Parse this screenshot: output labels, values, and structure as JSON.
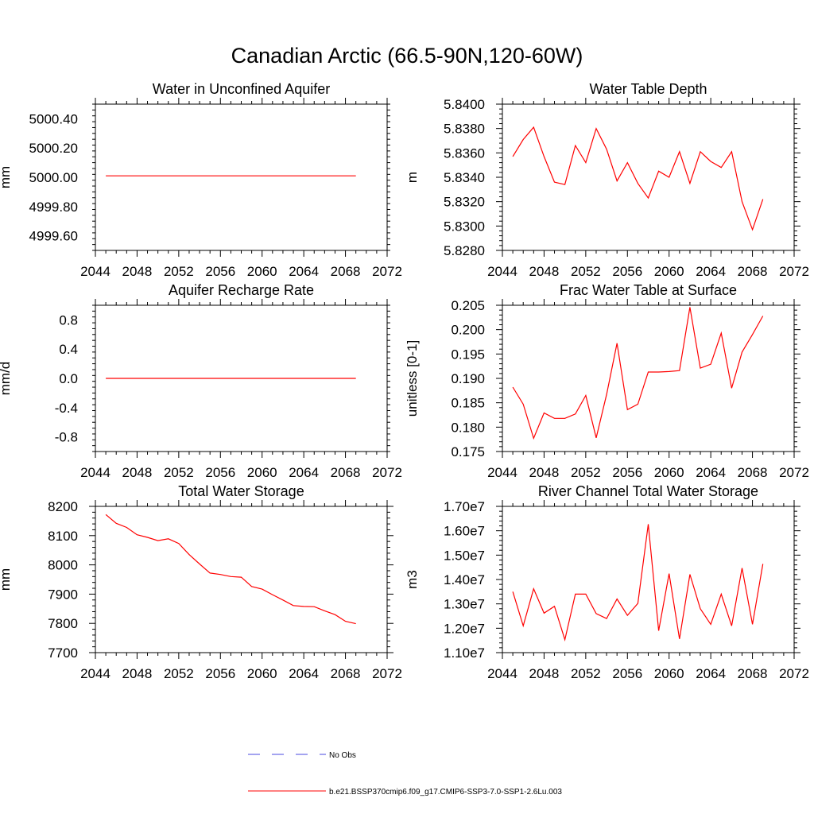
{
  "page_title": "Canadian Arctic (66.5-90N,120-60W)",
  "colors": {
    "series": "#ff0000",
    "obs": "#4a4ae0",
    "axis": "#000000"
  },
  "legend": {
    "items": [
      {
        "label": "No Obs",
        "style": "dashed",
        "color": "#4a4ae0"
      },
      {
        "label": "b.e21.BSSP370cmip6.f09_g17.CMIP6-SSP3-7.0-SSP1-2.6Lu.003",
        "style": "solid",
        "color": "#ff0000"
      }
    ]
  },
  "chart_data": [
    {
      "type": "line",
      "title": "Water in Unconfined Aquifer",
      "ylabel": "mm",
      "xlim": [
        2044,
        2072
      ],
      "ylim": [
        4999.5,
        5000.5
      ],
      "xticks": [
        2044,
        2048,
        2052,
        2056,
        2060,
        2064,
        2068,
        2072
      ],
      "yticks": [
        4999.6,
        4999.8,
        5000.0,
        5000.2,
        5000.4
      ],
      "ytick_labels": [
        "4999.60",
        "4999.80",
        "5000.00",
        "5000.20",
        "5000.40"
      ],
      "x": [
        2045,
        2046,
        2047,
        2048,
        2049,
        2050,
        2051,
        2052,
        2053,
        2054,
        2055,
        2056,
        2057,
        2058,
        2059,
        2060,
        2061,
        2062,
        2063,
        2064,
        2065,
        2066,
        2067,
        2068,
        2069
      ],
      "y": [
        5000.01,
        5000.01,
        5000.01,
        5000.01,
        5000.01,
        5000.01,
        5000.01,
        5000.01,
        5000.01,
        5000.01,
        5000.01,
        5000.01,
        5000.01,
        5000.01,
        5000.01,
        5000.01,
        5000.01,
        5000.01,
        5000.01,
        5000.01,
        5000.01,
        5000.01,
        5000.01,
        5000.01,
        5000.01
      ]
    },
    {
      "type": "line",
      "title": "Water Table Depth",
      "ylabel": "m",
      "xlim": [
        2044,
        2072
      ],
      "ylim": [
        5.828,
        5.84
      ],
      "xticks": [
        2044,
        2048,
        2052,
        2056,
        2060,
        2064,
        2068,
        2072
      ],
      "yticks": [
        5.828,
        5.83,
        5.832,
        5.834,
        5.836,
        5.838,
        5.84
      ],
      "ytick_labels": [
        "5.8280",
        "5.8300",
        "5.8320",
        "5.8340",
        "5.8360",
        "5.8380",
        "5.8400"
      ],
      "x": [
        2045,
        2046,
        2047,
        2048,
        2049,
        2050,
        2051,
        2052,
        2053,
        2054,
        2055,
        2056,
        2057,
        2058,
        2059,
        2060,
        2061,
        2062,
        2063,
        2064,
        2065,
        2066,
        2067,
        2068,
        2069
      ],
      "y": [
        5.8357,
        5.8371,
        5.8381,
        5.8357,
        5.8336,
        5.8334,
        5.8366,
        5.8352,
        5.838,
        5.8363,
        5.8337,
        5.8352,
        5.8335,
        5.8323,
        5.8345,
        5.834,
        5.8361,
        5.8335,
        5.8361,
        5.8353,
        5.8348,
        5.8361,
        5.832,
        5.8297,
        5.8322
      ]
    },
    {
      "type": "line",
      "title": "Aquifer Recharge Rate",
      "ylabel": "mm/d",
      "xlim": [
        2044,
        2072
      ],
      "ylim": [
        -1.0,
        1.0
      ],
      "xticks": [
        2044,
        2048,
        2052,
        2056,
        2060,
        2064,
        2068,
        2072
      ],
      "yticks": [
        -0.8,
        -0.4,
        0.0,
        0.4,
        0.8
      ],
      "ytick_labels": [
        "-0.8",
        "-0.4",
        "0.0",
        "0.4",
        "0.8"
      ],
      "x": [
        2045,
        2046,
        2047,
        2048,
        2049,
        2050,
        2051,
        2052,
        2053,
        2054,
        2055,
        2056,
        2057,
        2058,
        2059,
        2060,
        2061,
        2062,
        2063,
        2064,
        2065,
        2066,
        2067,
        2068,
        2069
      ],
      "y": [
        0,
        0,
        0,
        0,
        0,
        0,
        0,
        0,
        0,
        0,
        0,
        0,
        0,
        0,
        0,
        0,
        0,
        0,
        0,
        0,
        0,
        0,
        0,
        0,
        0
      ]
    },
    {
      "type": "line",
      "title": "Frac Water Table at Surface",
      "ylabel": "unitless [0-1]",
      "xlim": [
        2044,
        2072
      ],
      "ylim": [
        0.175,
        0.205
      ],
      "xticks": [
        2044,
        2048,
        2052,
        2056,
        2060,
        2064,
        2068,
        2072
      ],
      "yticks": [
        0.175,
        0.18,
        0.185,
        0.19,
        0.195,
        0.2,
        0.205
      ],
      "ytick_labels": [
        "0.175",
        "0.180",
        "0.185",
        "0.190",
        "0.195",
        "0.200",
        "0.205"
      ],
      "x": [
        2045,
        2046,
        2047,
        2048,
        2049,
        2050,
        2051,
        2052,
        2053,
        2054,
        2055,
        2056,
        2057,
        2058,
        2059,
        2060,
        2061,
        2062,
        2063,
        2064,
        2065,
        2066,
        2067,
        2068,
        2069
      ],
      "y": [
        0.1882,
        0.1847,
        0.1777,
        0.1829,
        0.1818,
        0.1818,
        0.1827,
        0.1865,
        0.1778,
        0.1867,
        0.1972,
        0.1836,
        0.1847,
        0.1913,
        0.1913,
        0.1914,
        0.1916,
        0.2046,
        0.1921,
        0.1929,
        0.1993,
        0.188,
        0.1954,
        0.199,
        0.2028
      ]
    },
    {
      "type": "line",
      "title": "Total Water Storage",
      "ylabel": "mm",
      "xlim": [
        2044,
        2072
      ],
      "ylim": [
        7700,
        8200
      ],
      "xticks": [
        2044,
        2048,
        2052,
        2056,
        2060,
        2064,
        2068,
        2072
      ],
      "yticks": [
        7700,
        7800,
        7900,
        8000,
        8100,
        8200
      ],
      "ytick_labels": [
        "7700",
        "7800",
        "7900",
        "8000",
        "8100",
        "8200"
      ],
      "x": [
        2045,
        2046,
        2047,
        2048,
        2049,
        2050,
        2051,
        2052,
        2053,
        2054,
        2055,
        2056,
        2057,
        2058,
        2059,
        2060,
        2061,
        2062,
        2063,
        2064,
        2065,
        2066,
        2067,
        2068,
        2069
      ],
      "y": [
        8172,
        8142,
        8128,
        8103,
        8094,
        8083,
        8089,
        8073,
        8035,
        8003,
        7972,
        7967,
        7960,
        7958,
        7926,
        7917,
        7898,
        7880,
        7861,
        7858,
        7857,
        7843,
        7830,
        7807,
        7799
      ]
    },
    {
      "type": "line",
      "title": "River Channel Total Water Storage",
      "ylabel": "m3",
      "xlim": [
        2044,
        2072
      ],
      "ylim": [
        11000000,
        17000000
      ],
      "xticks": [
        2044,
        2048,
        2052,
        2056,
        2060,
        2064,
        2068,
        2072
      ],
      "yticks": [
        11000000,
        12000000,
        13000000,
        14000000,
        15000000,
        16000000,
        17000000
      ],
      "ytick_labels": [
        "1.10e7",
        "1.20e7",
        "1.30e7",
        "1.40e7",
        "1.50e7",
        "1.60e7",
        "1.70e7"
      ],
      "x": [
        2045,
        2046,
        2047,
        2048,
        2049,
        2050,
        2051,
        2052,
        2053,
        2054,
        2055,
        2056,
        2057,
        2058,
        2059,
        2060,
        2061,
        2062,
        2063,
        2064,
        2065,
        2066,
        2067,
        2068,
        2069
      ],
      "y": [
        13500000,
        12100000,
        13620000,
        12620000,
        12900000,
        11530000,
        13400000,
        13400000,
        12600000,
        12400000,
        13200000,
        12530000,
        13020000,
        16270000,
        11900000,
        14240000,
        11560000,
        14210000,
        12800000,
        12160000,
        13400000,
        12100000,
        14470000,
        12160000,
        14640000
      ]
    }
  ]
}
